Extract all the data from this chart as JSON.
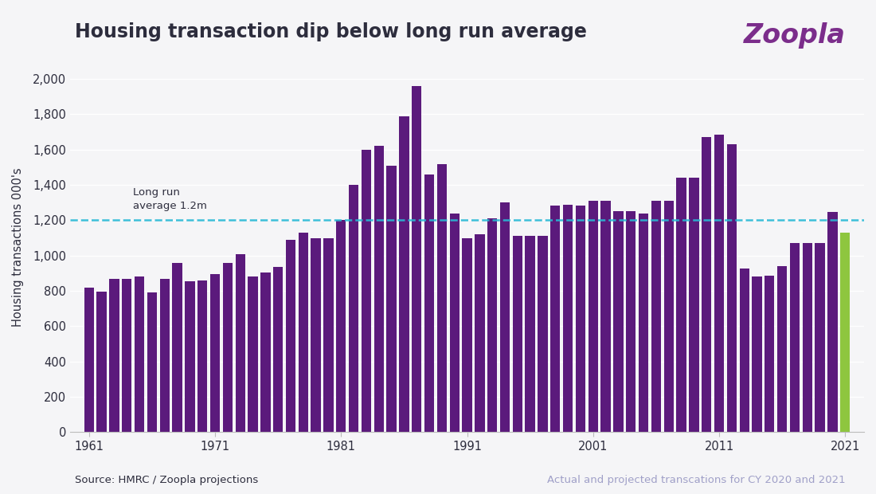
{
  "title": "Housing transaction dip below long run average",
  "ylabel": "Housing transactions 000's",
  "background_color": "#f5f5f7",
  "bar_color_purple": "#5b1a7c",
  "bar_color_green": "#8ec63f",
  "dashed_line_color": "#29b8d5",
  "dashed_line_value": 1200,
  "dashed_line_label": "Long run\naverage 1.2m",
  "source_text": "Source: HMRC / Zoopla projections",
  "footnote_text": "Actual and projected transcations for CY 2020 and 2021",
  "zoopla_color": "#7b2d8b",
  "title_color": "#2d2d3d",
  "footnote_color": "#a0a0c8",
  "years": [
    1961,
    1962,
    1963,
    1964,
    1965,
    1966,
    1967,
    1968,
    1969,
    1970,
    1971,
    1972,
    1973,
    1974,
    1975,
    1976,
    1977,
    1978,
    1979,
    1980,
    1981,
    1982,
    1983,
    1984,
    1985,
    1986,
    1987,
    1988,
    1989,
    1990,
    1991,
    1992,
    1993,
    1994,
    1995,
    1996,
    1997,
    1998,
    1999,
    2000,
    2001,
    2002,
    2003,
    2004,
    2005,
    2006,
    2007,
    2008,
    2009,
    2010,
    2011,
    2012,
    2013,
    2014,
    2015,
    2016,
    2017,
    2018,
    2019,
    2020,
    2021
  ],
  "values": [
    820,
    795,
    870,
    870,
    880,
    790,
    870,
    960,
    855,
    860,
    895,
    960,
    1010,
    880,
    905,
    935,
    1090,
    1130,
    1100,
    1100,
    1200,
    1400,
    1600,
    1620,
    1510,
    1790,
    1960,
    1460,
    1520,
    1240,
    1100,
    1120,
    1210,
    1300,
    1110,
    1110,
    1110,
    1285,
    1290,
    1285,
    1310,
    1310,
    1250,
    1250,
    1240,
    1310,
    1310,
    1440,
    1440,
    1670,
    1685,
    1630,
    925,
    880,
    885,
    940,
    1070,
    1070,
    1070,
    1245,
    1130
  ],
  "green_years": [
    2021
  ],
  "ylim": [
    0,
    2100
  ],
  "yticks": [
    0,
    200,
    400,
    600,
    800,
    1000,
    1200,
    1400,
    1600,
    1800,
    2000
  ],
  "xtick_years": [
    1961,
    1971,
    1981,
    1991,
    2001,
    2011,
    2021
  ],
  "figsize": [
    11.0,
    6.2
  ],
  "dpi": 100,
  "bar_width": 0.78
}
